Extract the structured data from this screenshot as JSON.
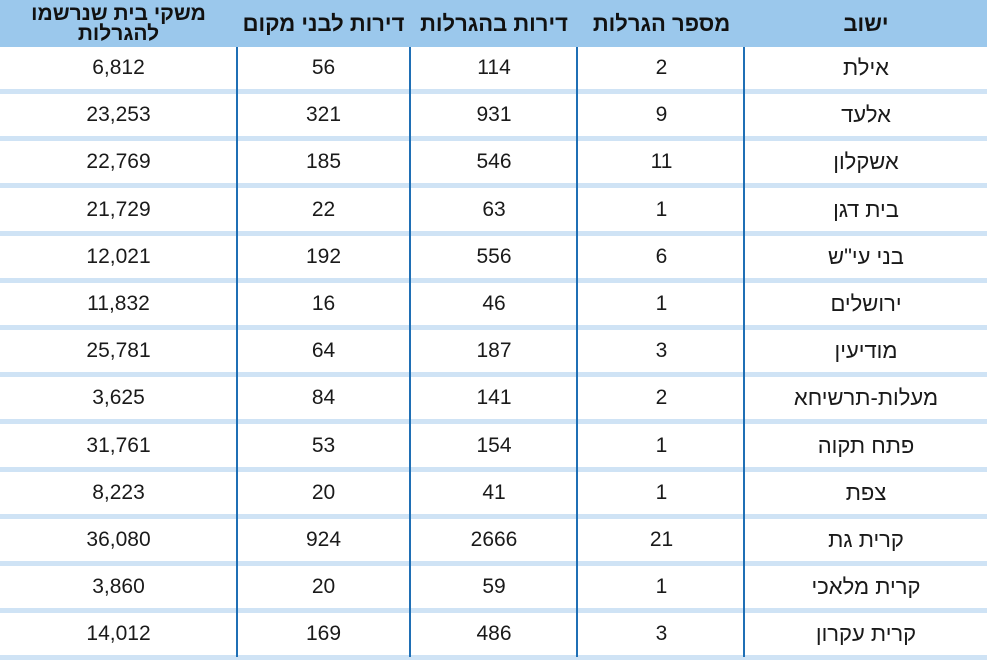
{
  "table": {
    "headers": {
      "city": "ישוב",
      "lotteries": "מספר הגרלות",
      "apartments": "דירות בהגרלות",
      "local": "דירות לבני מקום",
      "households_line1": "משקי בית שנרשמו",
      "households_line2": "להגרלות"
    },
    "rows": [
      {
        "city": "אילת",
        "lotteries": "2",
        "apartments": "114",
        "local": "56",
        "households": "6,812"
      },
      {
        "city": "אלעד",
        "lotteries": "9",
        "apartments": "931",
        "local": "321",
        "households": "23,253"
      },
      {
        "city": "אשקלון",
        "lotteries": "11",
        "apartments": "546",
        "local": "185",
        "households": "22,769"
      },
      {
        "city": "בית דגן",
        "lotteries": "1",
        "apartments": "63",
        "local": "22",
        "households": "21,729"
      },
      {
        "city": "בני עי\"ש",
        "lotteries": "6",
        "apartments": "556",
        "local": "192",
        "households": "12,021"
      },
      {
        "city": "ירושלים",
        "lotteries": "1",
        "apartments": "46",
        "local": "16",
        "households": "11,832"
      },
      {
        "city": "מודיעין",
        "lotteries": "3",
        "apartments": "187",
        "local": "64",
        "households": "25,781"
      },
      {
        "city": "מעלות-תרשיחא",
        "lotteries": "2",
        "apartments": "141",
        "local": "84",
        "households": "3,625"
      },
      {
        "city": "פתח תקוה",
        "lotteries": "1",
        "apartments": "154",
        "local": "53",
        "households": "31,761"
      },
      {
        "city": "צפת",
        "lotteries": "1",
        "apartments": "41",
        "local": "20",
        "households": "8,223"
      },
      {
        "city": "קרית גת",
        "lotteries": "21",
        "apartments": "2666",
        "local": "924",
        "households": "36,080"
      },
      {
        "city": "קרית מלאכי",
        "lotteries": "1",
        "apartments": "59",
        "local": "20",
        "households": "3,860"
      },
      {
        "city": "קרית עקרון",
        "lotteries": "3",
        "apartments": "486",
        "local": "169",
        "households": "14,012"
      }
    ],
    "colors": {
      "header_bg": "#9bc8ec",
      "row_separator": "#cfe3f5",
      "column_line": "#1f6fb5"
    }
  }
}
